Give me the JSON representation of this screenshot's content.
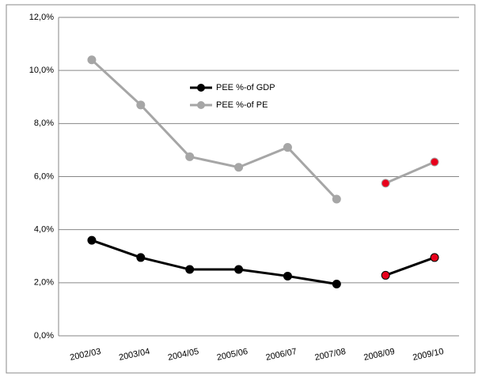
{
  "chart_data": {
    "type": "line",
    "categories": [
      "2002/03",
      "2003/04",
      "2004/05",
      "2005/06",
      "2006/07",
      "2007/08",
      "2008/09",
      "2009/10"
    ],
    "series": [
      {
        "name": "PEE %-of GDP",
        "color": "#000000",
        "values": [
          3.6,
          2.95,
          2.5,
          2.5,
          2.25,
          1.95,
          2.28,
          2.95
        ]
      },
      {
        "name": "PEE %-of PE",
        "color": "#a6a6a6",
        "values": [
          10.4,
          8.7,
          6.75,
          6.35,
          7.1,
          5.15,
          5.75,
          6.55
        ]
      }
    ],
    "break_before": 6,
    "highlight_color": "#e8001c",
    "ylim": [
      0,
      12
    ],
    "yticks": [
      {
        "value": 0,
        "label": "0,0%"
      },
      {
        "value": 2,
        "label": "2,0%"
      },
      {
        "value": 4,
        "label": "4,0%"
      },
      {
        "value": 6,
        "label": "6,0%"
      },
      {
        "value": 8,
        "label": "8,0%"
      },
      {
        "value": 10,
        "label": "10,0%"
      },
      {
        "value": 12,
        "label": "12,0%"
      }
    ],
    "grid": true
  }
}
